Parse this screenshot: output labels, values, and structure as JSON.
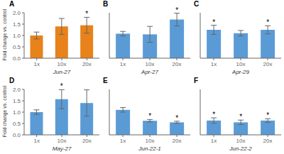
{
  "chart_data": [
    {
      "type": "bar",
      "title": "A",
      "xlabel": "Jun-27",
      "ylabel": "Fold change vs. control",
      "color": "#E8821A",
      "categories": [
        "1x",
        "10x",
        "20x"
      ],
      "values": [
        1.0,
        1.4,
        1.45
      ],
      "errors": [
        0.15,
        0.35,
        0.35
      ],
      "annotations": [
        {
          "x": "20x",
          "text": "*"
        }
      ],
      "ylim": [
        0,
        2.0
      ],
      "yticks": [
        {
          "value": 0,
          "label": "0.0"
        },
        {
          "value": 0.5,
          "label": "0.5"
        },
        {
          "value": 1.0,
          "label": "1.0"
        },
        {
          "value": 1.5,
          "label": "1.5"
        },
        {
          "value": 2.0,
          "label": "2.0"
        }
      ]
    },
    {
      "type": "bar",
      "title": "B",
      "xlabel": "Apr-27",
      "color": "#5B9BD5",
      "categories": [
        "1x",
        "10x",
        "20x"
      ],
      "values": [
        1.08,
        1.05,
        1.7
      ],
      "errors": [
        0.1,
        0.35,
        0.28
      ],
      "annotations": [
        {
          "x": "20x",
          "text": "*"
        }
      ],
      "ylim": [
        0,
        2.0
      ],
      "yticks": [
        0,
        0.5,
        1.0,
        1.5,
        2.0
      ],
      "tick_labels": "x"
    },
    {
      "type": "bar",
      "title": "C",
      "xlabel": "Apr-29",
      "color": "#5B9BD5",
      "categories": [
        "1x",
        "10x",
        "20x"
      ],
      "values": [
        1.25,
        1.1,
        1.25
      ],
      "errors": [
        0.2,
        0.12,
        0.18
      ],
      "annotations": [
        {
          "x": "1x",
          "text": "*"
        },
        {
          "x": "20x",
          "text": "*"
        }
      ],
      "ylim": [
        0,
        2.0
      ],
      "yticks": [
        0,
        0.5,
        1.0,
        1.5,
        2.0
      ],
      "tick_labels": "x"
    },
    {
      "type": "bar",
      "title": "D",
      "xlabel": "May-27",
      "ylabel": "Fold change vs. control",
      "color": "#5B9BD5",
      "categories": [
        "1x",
        "10x",
        "20x"
      ],
      "values": [
        1.0,
        1.57,
        1.4
      ],
      "errors": [
        0.1,
        0.42,
        0.58
      ],
      "annotations": [
        {
          "x": "10x",
          "text": "*"
        }
      ],
      "ylim": [
        0,
        2.0
      ],
      "yticks": [
        {
          "value": 0,
          "label": "0.0"
        },
        {
          "value": 0.5,
          "label": "0.5"
        },
        {
          "value": 1.0,
          "label": "1.0"
        },
        {
          "value": 1.5,
          "label": "1.5"
        },
        {
          "value": 2.0,
          "label": "2.0"
        }
      ]
    },
    {
      "type": "bar",
      "title": "E",
      "xlabel": "Jun-22-1",
      "color": "#5B9BD5",
      "categories": [
        "1x",
        "10x",
        "20x"
      ],
      "values": [
        1.1,
        0.62,
        0.55
      ],
      "errors": [
        0.1,
        0.055,
        0.05
      ],
      "annotations": [
        {
          "x": "10x",
          "text": "*"
        },
        {
          "x": "20x",
          "text": "*"
        }
      ],
      "ylim": [
        0,
        2.0
      ],
      "yticks": [
        0,
        0.5,
        1.0,
        1.5,
        2.0
      ],
      "tick_labels": "x"
    },
    {
      "type": "bar",
      "title": "F",
      "xlabel": "Jun-22-2",
      "color": "#5B9BD5",
      "categories": [
        "1x",
        "10x",
        "20x"
      ],
      "values": [
        0.63,
        0.55,
        0.63
      ],
      "errors": [
        0.12,
        0.1,
        0.08
      ],
      "annotations": [
        {
          "x": "1x",
          "text": "*"
        },
        {
          "x": "10x",
          "text": "*"
        },
        {
          "x": "20x",
          "text": "*"
        }
      ],
      "ylim": [
        0,
        2.0
      ],
      "yticks": [
        0,
        0.5,
        1.0,
        1.5,
        2.0
      ],
      "tick_labels": "x"
    }
  ]
}
